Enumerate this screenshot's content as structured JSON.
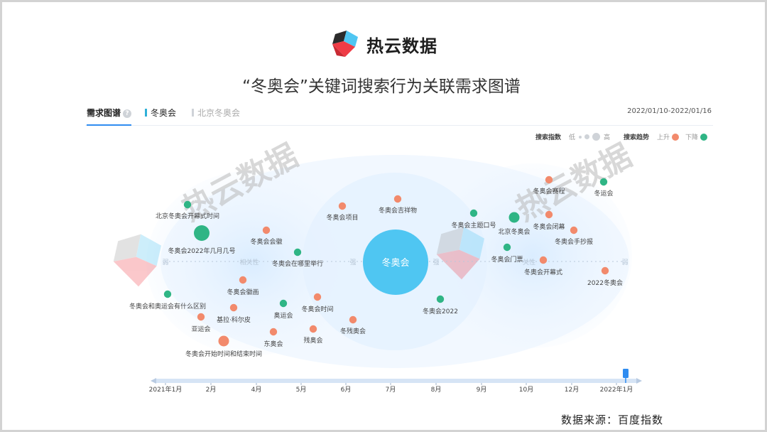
{
  "brand": {
    "name": "热云数据",
    "watermark": "热云数据"
  },
  "page_title": "“冬奥会”关键词搜索行为关联需求图谱",
  "tabs": {
    "demand_map": "需求图谱",
    "help": "?",
    "keyword1": "冬奥会",
    "keyword2": "北京冬奥会"
  },
  "date_range": "2022/01/10-2022/01/16",
  "legend": {
    "index_label": "搜索指数",
    "index_low": "低",
    "index_high": "高",
    "trend_label": "搜索趋势",
    "rise": "上升",
    "fall": "下降"
  },
  "colors": {
    "rise": "#f28a6c",
    "fall": "#2fb585",
    "center": "#4fc6f2",
    "accent": "#2f8cf0"
  },
  "source": "数据来源：百度指数",
  "chart_data": {
    "type": "scatter",
    "center": {
      "label": "冬奥会",
      "relevance": 0
    },
    "axis": {
      "left_label": "弱",
      "left_mid_label": "相关性",
      "center_left_label": "强",
      "center_right_label": "强",
      "right_mid_label": "关性",
      "right_label": "弱"
    },
    "points": [
      {
        "label": "北京冬奥会开幕式时间",
        "trend": "fall",
        "size": 1,
        "relevance": -0.76
      },
      {
        "label": "冬奥会2022年几月几号",
        "trend": "fall",
        "size": 3,
        "relevance": -0.72
      },
      {
        "label": "冬奥会会徽",
        "trend": "rise",
        "size": 1,
        "relevance": -0.47
      },
      {
        "label": "冬奥会在哪里举行",
        "trend": "fall",
        "size": 1,
        "relevance": -0.36
      },
      {
        "label": "冬奥会项目",
        "trend": "rise",
        "size": 1,
        "relevance": -0.19
      },
      {
        "label": "冬奥会吉祥物",
        "trend": "rise",
        "size": 1,
        "relevance": 0.01
      },
      {
        "label": "冬奥会和奥运会有什么区别",
        "trend": "fall",
        "size": 1,
        "relevance": -0.83
      },
      {
        "label": "冬奥会徽画",
        "trend": "rise",
        "size": 1,
        "relevance": -0.55
      },
      {
        "label": "奥运会",
        "trend": "fall",
        "size": 1,
        "relevance": -0.41
      },
      {
        "label": "冬奥会时间",
        "trend": "rise",
        "size": 1,
        "relevance": -0.29
      },
      {
        "label": "亚运会",
        "trend": "rise",
        "size": 1,
        "relevance": -0.69
      },
      {
        "label": "基拉·科尔皮",
        "trend": "rise",
        "size": 1,
        "relevance": -0.56
      },
      {
        "label": "东奥会",
        "trend": "rise",
        "size": 1,
        "relevance": -0.42
      },
      {
        "label": "残奥会",
        "trend": "rise",
        "size": 1,
        "relevance": -0.3
      },
      {
        "label": "冬残奥会",
        "trend": "rise",
        "size": 1,
        "relevance": -0.15
      },
      {
        "label": "冬奥会开始时间和结束时间",
        "trend": "rise",
        "size": 2,
        "relevance": -0.61
      },
      {
        "label": "冬奥会2022",
        "trend": "fall",
        "size": 1,
        "relevance": 0.15
      },
      {
        "label": "冬奥会主题口号",
        "trend": "fall",
        "size": 1,
        "relevance": 0.27
      },
      {
        "label": "北京冬奥会",
        "trend": "fall",
        "size": 2,
        "relevance": 0.44
      },
      {
        "label": "冬奥会门票",
        "trend": "fall",
        "size": 1,
        "relevance": 0.39
      },
      {
        "label": "冬奥会赛程",
        "trend": "rise",
        "size": 1,
        "relevance": 0.55
      },
      {
        "label": "冬奥会闭幕",
        "trend": "rise",
        "size": 1,
        "relevance": 0.55
      },
      {
        "label": "冬奥会开幕式",
        "trend": "rise",
        "size": 1,
        "relevance": 0.53
      },
      {
        "label": "冬奥会手抄报",
        "trend": "rise",
        "size": 1,
        "relevance": 0.67
      },
      {
        "label": "冬运会",
        "trend": "fall",
        "size": 1,
        "relevance": 0.78
      },
      {
        "label": "2022冬奥会",
        "trend": "rise",
        "size": 1,
        "relevance": 0.78
      }
    ],
    "timeline": {
      "ticks": [
        "2021年1月",
        "2月",
        "4月",
        "5月",
        "6月",
        "7月",
        "8月",
        "9月",
        "10月",
        "12月",
        "2022年1月"
      ],
      "selected": "2022年1月"
    }
  }
}
